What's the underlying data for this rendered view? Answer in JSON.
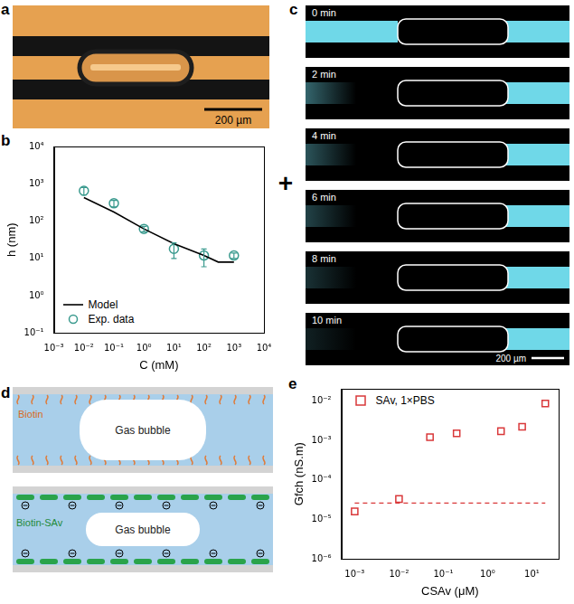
{
  "panels": {
    "a": {
      "letter": "a",
      "scale_bar": "200 µm"
    },
    "c": {
      "letter": "c",
      "symbol": "+",
      "frames": [
        "0 min",
        "2 min",
        "4 min",
        "6 min",
        "8 min",
        "10 min"
      ],
      "scale_bar": "200 µm"
    },
    "d": {
      "letter": "d",
      "top": {
        "label": "Biotin",
        "bubble": "Gas bubble"
      },
      "bottom": {
        "label": "Biotin-SAv",
        "bubble": "Gas bubble"
      }
    }
  },
  "chart_data": [
    {
      "letter": "b",
      "type": "scatter",
      "x_label": "C (mM)",
      "y_label": "h (nm)",
      "log": true,
      "grid": false,
      "legend": "lower left",
      "xlim": [
        0.001,
        10000
      ],
      "ylim": [
        0.1,
        10000
      ],
      "xticks": [
        {
          "value": 0.001,
          "label": "10⁻³"
        },
        {
          "value": 0.01,
          "label": "10⁻²"
        },
        {
          "value": 0.1,
          "label": "10⁻¹"
        },
        {
          "value": 1,
          "label": "10⁰"
        },
        {
          "value": 10,
          "label": "10¹"
        },
        {
          "value": 100,
          "label": "10²"
        },
        {
          "value": 1000,
          "label": "10³"
        },
        {
          "value": 10000,
          "label": "10⁴"
        }
      ],
      "yticks": [
        {
          "value": 0.1,
          "label": "10⁻¹"
        },
        {
          "value": 1,
          "label": "10⁰"
        },
        {
          "value": 10,
          "label": "10¹"
        },
        {
          "value": 100,
          "label": "10²"
        },
        {
          "value": 1000,
          "label": "10³"
        },
        {
          "value": 10000,
          "label": "10⁴"
        }
      ],
      "series": [
        {
          "name": "Model",
          "type": "line",
          "color": "#000000",
          "line_style": "solid",
          "x": [
            0.01,
            0.1,
            1,
            10,
            100,
            300,
            1000
          ],
          "values": [
            430,
            175,
            62,
            25,
            12,
            8,
            8
          ]
        },
        {
          "name": "Exp. data",
          "type": "scatter",
          "color": "#3a9a8e",
          "marker": "circle",
          "x": [
            0.01,
            0.1,
            1,
            10,
            100,
            1000
          ],
          "values": [
            650,
            300,
            62,
            18,
            12,
            12
          ],
          "errors": [
            150,
            60,
            10,
            8,
            6,
            2
          ]
        }
      ]
    },
    {
      "letter": "e",
      "type": "scatter",
      "x_label": "CSAv (μM)",
      "y_label": "Gfch (nS.m)",
      "log": true,
      "grid": false,
      "legend": "upper left",
      "xlim": [
        0.0005,
        40
      ],
      "ylim": [
        1e-06,
        0.02
      ],
      "xticks": [
        {
          "value": 0.001,
          "label": "10⁻³"
        },
        {
          "value": 0.01,
          "label": "10⁻²"
        },
        {
          "value": 0.1,
          "label": "10⁻¹"
        },
        {
          "value": 1,
          "label": "10⁰"
        },
        {
          "value": 10,
          "label": "10¹"
        }
      ],
      "yticks": [
        {
          "value": 1e-06,
          "label": "10⁻⁶"
        },
        {
          "value": 1e-05,
          "label": "10⁻⁵"
        },
        {
          "value": 0.0001,
          "label": "10⁻⁴"
        },
        {
          "value": 0.001,
          "label": "10⁻³"
        },
        {
          "value": 0.01,
          "label": "10⁻²"
        }
      ],
      "series": [
        {
          "name": "SAv, 1×PBS",
          "type": "scatter",
          "color": "#d9383a",
          "marker": "square",
          "x": [
            0.001,
            0.01,
            0.05,
            0.2,
            2,
            6,
            20
          ],
          "values": [
            1.6e-05,
            3.3e-05,
            0.0012,
            0.0015,
            0.0017,
            0.0022,
            0.0085
          ]
        }
      ],
      "threshold": {
        "x": [
          0.001,
          20
        ],
        "value": 2.6e-05,
        "color": "#d9383a",
        "line_style": "dashed"
      }
    }
  ]
}
